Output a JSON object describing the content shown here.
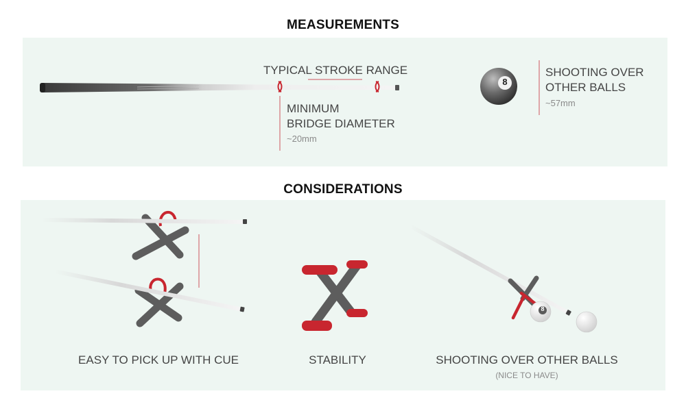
{
  "measurements": {
    "heading": "MEASUREMENTS",
    "stroke_range_label": "TYPICAL STROKE RANGE",
    "bridge_label_line1": "MINIMUM",
    "bridge_label_line2": "BRIDGE DIAMETER",
    "bridge_value": "~20mm",
    "ball_number": "8",
    "over_label_line1": "SHOOTING OVER",
    "over_label_line2": "OTHER BALLS",
    "over_value": "~57mm"
  },
  "considerations": {
    "heading": "CONSIDERATIONS",
    "items": [
      {
        "label": "EASY TO PICK UP WITH CUE"
      },
      {
        "label": "STABILITY"
      },
      {
        "label": "SHOOTING OVER OTHER BALLS",
        "note": "(NICE TO HAVE)"
      }
    ],
    "ball_number": "8"
  },
  "colors": {
    "panel_bg": "#eef6f2",
    "accent_red": "#c8262f",
    "bridge_gray": "#5d5d5d",
    "label_gray": "#454545",
    "sub_gray": "#8a8a8a"
  }
}
